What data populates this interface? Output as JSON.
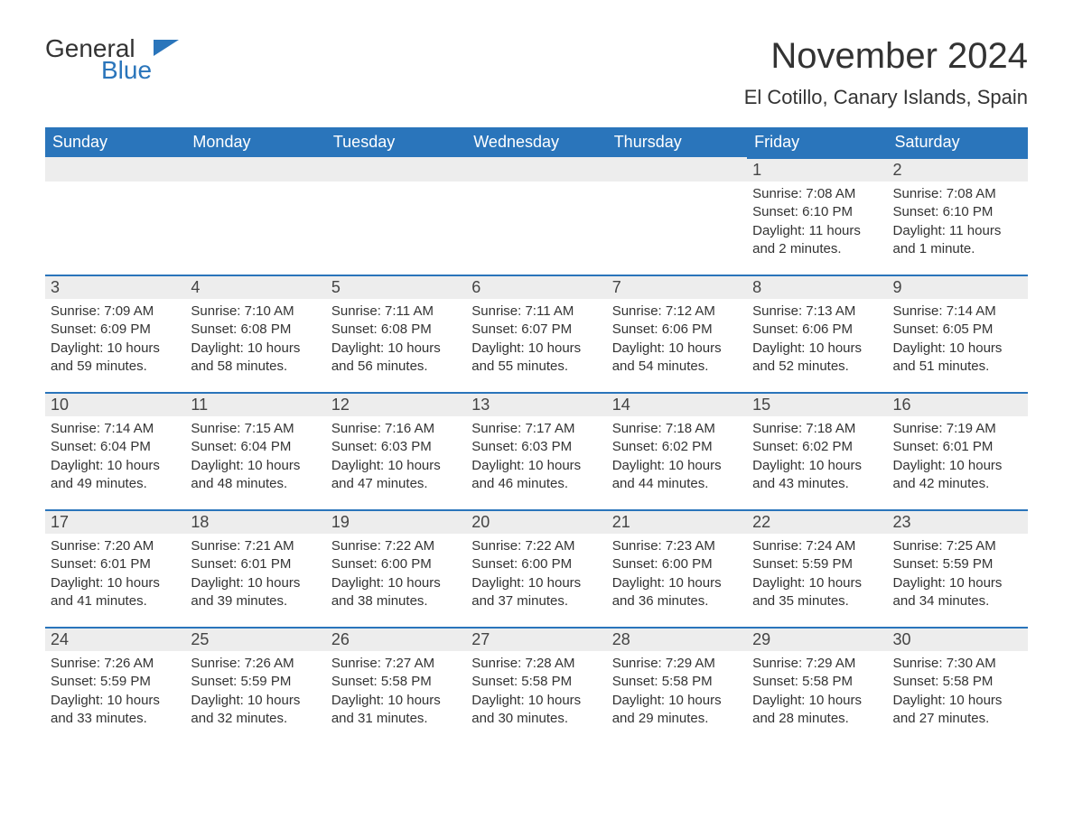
{
  "logo": {
    "word1": "General",
    "word2": "Blue"
  },
  "title": "November 2024",
  "location": "El Cotillo, Canary Islands, Spain",
  "colors": {
    "header_bg": "#2a75bb",
    "header_text": "#ffffff",
    "daynum_bg": "#ededed",
    "daynum_border": "#2a75bb",
    "body_text": "#333333",
    "background": "#ffffff"
  },
  "fonts": {
    "title_size": 40,
    "location_size": 22,
    "header_size": 18,
    "daynum_size": 18,
    "body_size": 15
  },
  "day_headers": [
    "Sunday",
    "Monday",
    "Tuesday",
    "Wednesday",
    "Thursday",
    "Friday",
    "Saturday"
  ],
  "weeks": [
    [
      null,
      null,
      null,
      null,
      null,
      {
        "n": "1",
        "sunrise": "7:08 AM",
        "sunset": "6:10 PM",
        "daylight": "11 hours and 2 minutes."
      },
      {
        "n": "2",
        "sunrise": "7:08 AM",
        "sunset": "6:10 PM",
        "daylight": "11 hours and 1 minute."
      }
    ],
    [
      {
        "n": "3",
        "sunrise": "7:09 AM",
        "sunset": "6:09 PM",
        "daylight": "10 hours and 59 minutes."
      },
      {
        "n": "4",
        "sunrise": "7:10 AM",
        "sunset": "6:08 PM",
        "daylight": "10 hours and 58 minutes."
      },
      {
        "n": "5",
        "sunrise": "7:11 AM",
        "sunset": "6:08 PM",
        "daylight": "10 hours and 56 minutes."
      },
      {
        "n": "6",
        "sunrise": "7:11 AM",
        "sunset": "6:07 PM",
        "daylight": "10 hours and 55 minutes."
      },
      {
        "n": "7",
        "sunrise": "7:12 AM",
        "sunset": "6:06 PM",
        "daylight": "10 hours and 54 minutes."
      },
      {
        "n": "8",
        "sunrise": "7:13 AM",
        "sunset": "6:06 PM",
        "daylight": "10 hours and 52 minutes."
      },
      {
        "n": "9",
        "sunrise": "7:14 AM",
        "sunset": "6:05 PM",
        "daylight": "10 hours and 51 minutes."
      }
    ],
    [
      {
        "n": "10",
        "sunrise": "7:14 AM",
        "sunset": "6:04 PM",
        "daylight": "10 hours and 49 minutes."
      },
      {
        "n": "11",
        "sunrise": "7:15 AM",
        "sunset": "6:04 PM",
        "daylight": "10 hours and 48 minutes."
      },
      {
        "n": "12",
        "sunrise": "7:16 AM",
        "sunset": "6:03 PM",
        "daylight": "10 hours and 47 minutes."
      },
      {
        "n": "13",
        "sunrise": "7:17 AM",
        "sunset": "6:03 PM",
        "daylight": "10 hours and 46 minutes."
      },
      {
        "n": "14",
        "sunrise": "7:18 AM",
        "sunset": "6:02 PM",
        "daylight": "10 hours and 44 minutes."
      },
      {
        "n": "15",
        "sunrise": "7:18 AM",
        "sunset": "6:02 PM",
        "daylight": "10 hours and 43 minutes."
      },
      {
        "n": "16",
        "sunrise": "7:19 AM",
        "sunset": "6:01 PM",
        "daylight": "10 hours and 42 minutes."
      }
    ],
    [
      {
        "n": "17",
        "sunrise": "7:20 AM",
        "sunset": "6:01 PM",
        "daylight": "10 hours and 41 minutes."
      },
      {
        "n": "18",
        "sunrise": "7:21 AM",
        "sunset": "6:01 PM",
        "daylight": "10 hours and 39 minutes."
      },
      {
        "n": "19",
        "sunrise": "7:22 AM",
        "sunset": "6:00 PM",
        "daylight": "10 hours and 38 minutes."
      },
      {
        "n": "20",
        "sunrise": "7:22 AM",
        "sunset": "6:00 PM",
        "daylight": "10 hours and 37 minutes."
      },
      {
        "n": "21",
        "sunrise": "7:23 AM",
        "sunset": "6:00 PM",
        "daylight": "10 hours and 36 minutes."
      },
      {
        "n": "22",
        "sunrise": "7:24 AM",
        "sunset": "5:59 PM",
        "daylight": "10 hours and 35 minutes."
      },
      {
        "n": "23",
        "sunrise": "7:25 AM",
        "sunset": "5:59 PM",
        "daylight": "10 hours and 34 minutes."
      }
    ],
    [
      {
        "n": "24",
        "sunrise": "7:26 AM",
        "sunset": "5:59 PM",
        "daylight": "10 hours and 33 minutes."
      },
      {
        "n": "25",
        "sunrise": "7:26 AM",
        "sunset": "5:59 PM",
        "daylight": "10 hours and 32 minutes."
      },
      {
        "n": "26",
        "sunrise": "7:27 AM",
        "sunset": "5:58 PM",
        "daylight": "10 hours and 31 minutes."
      },
      {
        "n": "27",
        "sunrise": "7:28 AM",
        "sunset": "5:58 PM",
        "daylight": "10 hours and 30 minutes."
      },
      {
        "n": "28",
        "sunrise": "7:29 AM",
        "sunset": "5:58 PM",
        "daylight": "10 hours and 29 minutes."
      },
      {
        "n": "29",
        "sunrise": "7:29 AM",
        "sunset": "5:58 PM",
        "daylight": "10 hours and 28 minutes."
      },
      {
        "n": "30",
        "sunrise": "7:30 AM",
        "sunset": "5:58 PM",
        "daylight": "10 hours and 27 minutes."
      }
    ]
  ],
  "labels": {
    "sunrise": "Sunrise: ",
    "sunset": "Sunset: ",
    "daylight": "Daylight: "
  }
}
